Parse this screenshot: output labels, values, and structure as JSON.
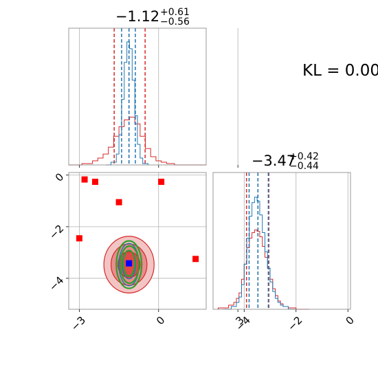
{
  "colors": {
    "red": "#d62728",
    "blue": "#1f77b4",
    "green": "#2ca02c",
    "marker_red": "#ff0000",
    "marker_blue": "#0000ff",
    "grid": "#b0b0b0",
    "spine": "#808080",
    "contour_fills": [
      "#f3c4c4",
      "#ea8c8c",
      "#e04a4a"
    ]
  },
  "annotation": {
    "text": "KL = 0.00"
  },
  "chart_data": [
    {
      "panel": "marginal-x",
      "type": "line",
      "title": {
        "value": "−1.12",
        "upper": "+0.61",
        "lower": "−0.56"
      },
      "xlim": [
        -3.4,
        1.8
      ],
      "ylim": [
        0,
        1
      ],
      "x_ticks": [
        -3,
        0,
        3
      ],
      "grid": true,
      "series": [
        {
          "color": "red",
          "bin_edges": [
            -3.4,
            -2.9,
            -2.5,
            -2.3,
            -2.1,
            -1.9,
            -1.7,
            -1.5,
            -1.3,
            -1.1,
            -0.9,
            -0.7,
            -0.5,
            -0.3,
            -0.1,
            0.1,
            0.3,
            0.6,
            1.8
          ],
          "counts": [
            0.0,
            0.01,
            0.03,
            0.05,
            0.08,
            0.13,
            0.21,
            0.28,
            0.33,
            0.35,
            0.3,
            0.21,
            0.12,
            0.06,
            0.03,
            0.02,
            0.01,
            0.0
          ],
          "quantiles": [
            -1.68,
            -1.12,
            -0.51
          ]
        },
        {
          "color": "blue",
          "bin_edges": [
            -2.0,
            -1.8,
            -1.6,
            -1.5,
            -1.4,
            -1.3,
            -1.2,
            -1.1,
            -1.0,
            -0.9,
            -0.8,
            -0.7,
            -0.6,
            -0.4
          ],
          "counts": [
            0.0,
            0.02,
            0.08,
            0.22,
            0.48,
            0.75,
            0.9,
            0.85,
            0.62,
            0.36,
            0.15,
            0.05,
            0.01
          ],
          "quantiles": [
            -1.4,
            -1.12,
            -0.88
          ]
        }
      ]
    },
    {
      "panel": "marginal-y",
      "type": "line",
      "title": {
        "value": "−3.47",
        "upper": "+0.42",
        "lower": "−0.44"
      },
      "xlim": [
        -5.2,
        0.1
      ],
      "ylim": [
        0,
        1
      ],
      "x_ticks": [
        -4,
        -2,
        0
      ],
      "grid": true,
      "series": [
        {
          "color": "red",
          "bin_edges": [
            -5.0,
            -4.6,
            -4.4,
            -4.3,
            -4.2,
            -4.1,
            -4.0,
            -3.9,
            -3.8,
            -3.7,
            -3.6,
            -3.5,
            -3.4,
            -3.3,
            -3.2,
            -3.1,
            -3.0,
            -2.9,
            -2.8,
            -2.7,
            -2.6,
            -2.5,
            -2.3,
            -2.0,
            -1.5
          ],
          "counts": [
            0.01,
            0.03,
            0.05,
            0.08,
            0.12,
            0.22,
            0.33,
            0.45,
            0.52,
            0.56,
            0.58,
            0.57,
            0.53,
            0.46,
            0.38,
            0.3,
            0.22,
            0.15,
            0.1,
            0.06,
            0.04,
            0.02,
            0.01,
            0.0
          ],
          "quantiles": [
            -3.91,
            -3.47,
            -3.05
          ]
        },
        {
          "color": "blue",
          "bin_edges": [
            -4.8,
            -4.5,
            -4.3,
            -4.2,
            -4.1,
            -4.0,
            -3.9,
            -3.8,
            -3.7,
            -3.6,
            -3.5,
            -3.4,
            -3.3,
            -3.2,
            -3.1,
            -3.0,
            -2.9,
            -2.8,
            -2.7,
            -2.6,
            -2.5,
            -2.3,
            -2.0
          ],
          "counts": [
            0.0,
            0.02,
            0.05,
            0.09,
            0.18,
            0.33,
            0.52,
            0.68,
            0.78,
            0.82,
            0.79,
            0.69,
            0.56,
            0.42,
            0.3,
            0.2,
            0.13,
            0.08,
            0.05,
            0.03,
            0.02,
            0.0
          ],
          "quantiles": [
            -3.81,
            -3.47,
            -3.07
          ]
        }
      ]
    },
    {
      "panel": "joint",
      "type": "scatter",
      "xlim": [
        -3.4,
        1.8
      ],
      "ylim": [
        -5.2,
        0.1
      ],
      "x_ticks": [
        -3,
        0,
        3
      ],
      "y_ticks": [
        0,
        -2,
        -4
      ],
      "grid": true,
      "red_contours": [
        {
          "cx": -1.12,
          "cy": -3.47,
          "rx": 0.95,
          "ry": 1.1,
          "fill_level": 0
        },
        {
          "cx": -1.12,
          "cy": -3.47,
          "rx": 0.68,
          "ry": 0.8,
          "fill_level": 1
        },
        {
          "cx": -1.12,
          "cy": -3.47,
          "rx": 0.42,
          "ry": 0.5,
          "fill_level": 2
        }
      ],
      "blue_contours": [
        {
          "cx": -1.12,
          "cy": -3.47,
          "rx": 0.38,
          "ry": 0.82
        },
        {
          "cx": -1.12,
          "cy": -3.47,
          "rx": 0.25,
          "ry": 0.55
        }
      ],
      "green_contours": [
        {
          "cx": -1.12,
          "cy": -3.47,
          "rx": 0.48,
          "ry": 0.92
        },
        {
          "cx": -1.1,
          "cy": -3.47,
          "rx": 0.35,
          "ry": 0.72
        },
        {
          "cx": -1.12,
          "cy": -3.42,
          "rx": 0.22,
          "ry": 0.5
        }
      ],
      "red_markers": [
        {
          "x": -2.8,
          "y": -0.17
        },
        {
          "x": -2.4,
          "y": -0.26
        },
        {
          "x": -1.5,
          "y": -1.05
        },
        {
          "x": -3.0,
          "y": -2.45
        },
        {
          "x": 0.1,
          "y": -0.26
        },
        {
          "x": 1.4,
          "y": -3.25
        }
      ],
      "blue_marker": {
        "x": -1.12,
        "y": -3.42
      }
    }
  ]
}
